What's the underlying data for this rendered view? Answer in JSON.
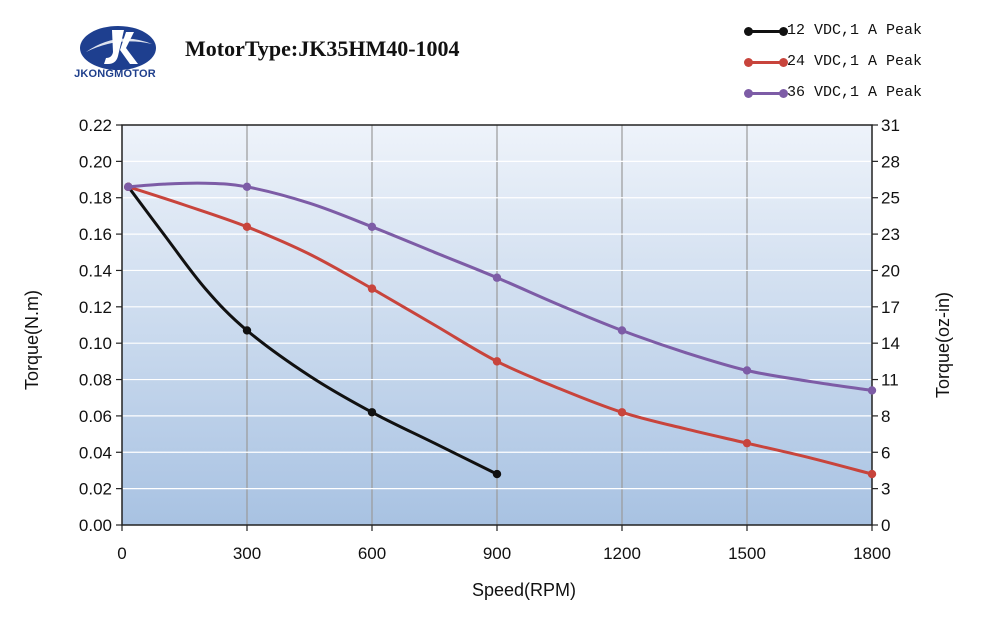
{
  "header": {
    "logo_text": "JKONGMOTOR",
    "title": "MotorType:JK35HM40-1004"
  },
  "chart_data": {
    "type": "line",
    "title": "MotorType:JK35HM40-1004",
    "xlabel": "Speed(RPM)",
    "ylabel": "Torque(N.m)",
    "y2label": "Torque(oz-in)",
    "xlim": [
      0,
      1800
    ],
    "ylim": [
      0,
      0.22
    ],
    "y2lim": [
      0,
      31
    ],
    "x_ticks": [
      "0",
      "300",
      "600",
      "900",
      "1200",
      "1500",
      "1800"
    ],
    "y_ticks": [
      "0.00",
      "0.02",
      "0.04",
      "0.06",
      "0.08",
      "0.10",
      "0.12",
      "0.14",
      "0.16",
      "0.18",
      "0.20",
      "0.22"
    ],
    "y2_ticks": [
      "0",
      "3",
      "6",
      "8",
      "11",
      "14",
      "17",
      "20",
      "23",
      "25",
      "28",
      "31"
    ],
    "grid": true,
    "legend_position": "top-right",
    "series": [
      {
        "name": "12 VDC,1 A Peak",
        "color": "#111111",
        "x": [
          15,
          300,
          600,
          900
        ],
        "y": [
          0.186,
          0.107,
          0.062,
          0.028
        ],
        "curve": [
          [
            15,
            0.186
          ],
          [
            100,
            0.16
          ],
          [
            200,
            0.13
          ],
          [
            300,
            0.107
          ],
          [
            450,
            0.082
          ],
          [
            600,
            0.062
          ],
          [
            750,
            0.045
          ],
          [
            900,
            0.028
          ]
        ]
      },
      {
        "name": "24 VDC,1 A Peak",
        "color": "#c8443c",
        "x": [
          15,
          300,
          600,
          900,
          1200,
          1500,
          1800
        ],
        "y": [
          0.186,
          0.164,
          0.13,
          0.09,
          0.062,
          0.045,
          0.028
        ],
        "curve": [
          [
            15,
            0.186
          ],
          [
            150,
            0.176
          ],
          [
            300,
            0.164
          ],
          [
            450,
            0.149
          ],
          [
            600,
            0.13
          ],
          [
            750,
            0.11
          ],
          [
            900,
            0.09
          ],
          [
            1050,
            0.075
          ],
          [
            1200,
            0.062
          ],
          [
            1350,
            0.053
          ],
          [
            1500,
            0.045
          ],
          [
            1650,
            0.037
          ],
          [
            1800,
            0.028
          ]
        ]
      },
      {
        "name": "36 VDC,1 A Peak",
        "color": "#7d5ca6",
        "x": [
          15,
          300,
          600,
          900,
          1200,
          1500,
          1800
        ],
        "y": [
          0.186,
          0.186,
          0.164,
          0.136,
          0.107,
          0.085,
          0.074
        ],
        "curve": [
          [
            15,
            0.186
          ],
          [
            100,
            0.1875
          ],
          [
            200,
            0.188
          ],
          [
            300,
            0.186
          ],
          [
            450,
            0.177
          ],
          [
            600,
            0.164
          ],
          [
            750,
            0.15
          ],
          [
            900,
            0.136
          ],
          [
            1050,
            0.121
          ],
          [
            1200,
            0.107
          ],
          [
            1350,
            0.095
          ],
          [
            1500,
            0.085
          ],
          [
            1650,
            0.079
          ],
          [
            1800,
            0.074
          ]
        ]
      }
    ]
  }
}
